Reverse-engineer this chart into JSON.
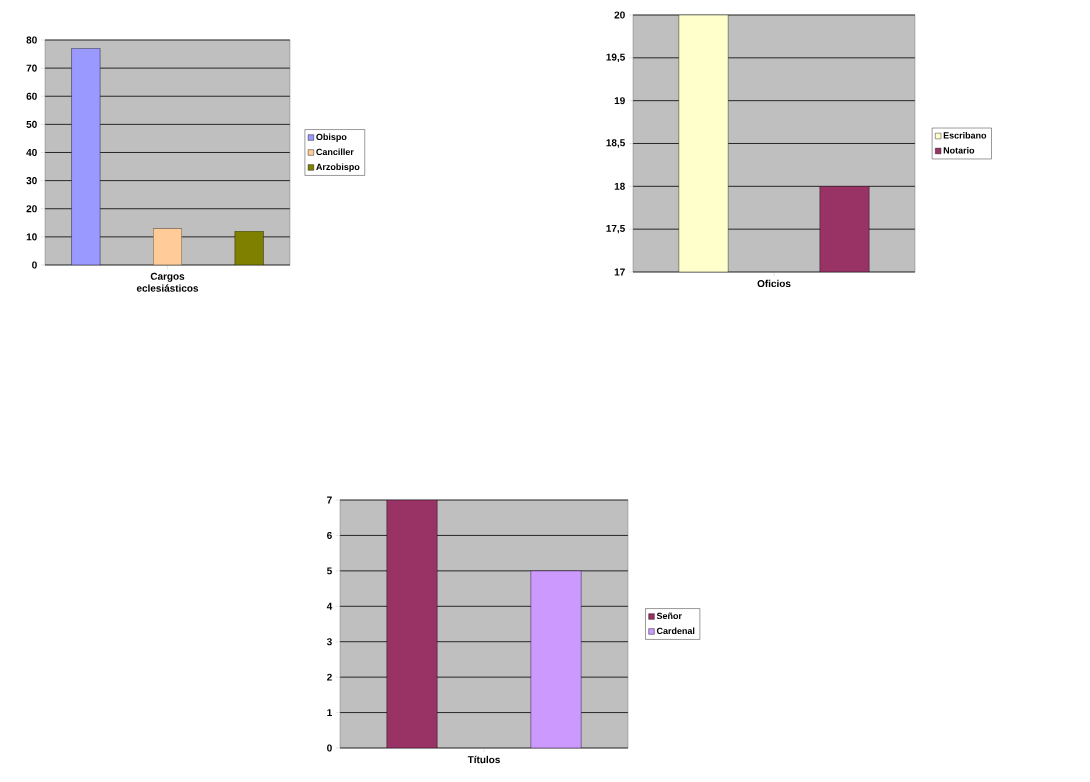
{
  "chart_data": [
    {
      "type": "bar",
      "categories": [
        "Cargos eclesiásticos"
      ],
      "series": [
        {
          "name": "Obispo",
          "color": "#9999ff",
          "values": [
            77
          ]
        },
        {
          "name": "Canciller",
          "color": "#ffcc99",
          "values": [
            13
          ]
        },
        {
          "name": "Arzobispo",
          "color": "#808000",
          "values": [
            12
          ]
        }
      ],
      "ylim": [
        0,
        80
      ],
      "yticks": [
        0,
        10,
        20,
        30,
        40,
        50,
        60,
        70,
        80
      ],
      "grid": "y",
      "legend": "right"
    },
    {
      "type": "bar",
      "categories": [
        "Oficios"
      ],
      "series": [
        {
          "name": "Escribano",
          "color": "#ffffcc",
          "values": [
            20
          ]
        },
        {
          "name": "Notario",
          "color": "#993366",
          "values": [
            18
          ]
        }
      ],
      "ylim": [
        17,
        20
      ],
      "yticks": [
        17,
        {
          "value": 17.5,
          "label": "17,5"
        },
        18,
        {
          "value": 18.5,
          "label": "18,5"
        },
        19,
        {
          "value": 19.5,
          "label": "19,5"
        },
        20
      ],
      "grid": "y",
      "legend": "right"
    },
    {
      "type": "bar",
      "categories": [
        "Títulos"
      ],
      "series": [
        {
          "name": "Señor",
          "color": "#993366",
          "values": [
            7
          ]
        },
        {
          "name": "Cardenal",
          "color": "#cc99ff",
          "values": [
            5
          ]
        }
      ],
      "ylim": [
        0,
        7
      ],
      "yticks": [
        0,
        1,
        2,
        3,
        4,
        5,
        6,
        7
      ],
      "grid": "y",
      "legend": "right"
    }
  ]
}
